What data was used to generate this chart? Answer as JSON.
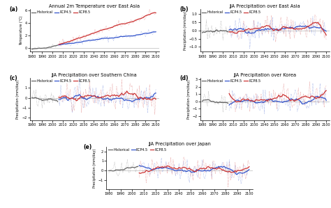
{
  "title_a": "Annual 2m Temperature over East Asia",
  "title_b": "JJA Precipitation over East Asia",
  "title_c": "JJA Precipitation over Southern China",
  "title_d": "JJA Precipitation over Korea",
  "title_e": "JJA Precipitation over Japan",
  "label_a": "(a)",
  "label_b": "(b)",
  "label_c": "(c)",
  "label_d": "(d)",
  "label_e": "(e)",
  "ylabel_temp": "Temperature (°C)",
  "ylabel_precip": "Precipitation (mm/day)",
  "legend_historical": "Historical",
  "legend_rcp45": "RCP4.5",
  "legend_rcp85": "RCP8.5",
  "color_historical": "#666666",
  "color_rcp45": "#3355cc",
  "color_rcp85": "#cc3333",
  "hist_start": 1980,
  "hist_end": 2005,
  "proj_start": 2006,
  "proj_end": 2100,
  "xlim": [
    1978,
    2103
  ],
  "xticks": [
    1980,
    1990,
    2000,
    2010,
    2020,
    2030,
    2040,
    2050,
    2060,
    2070,
    2080,
    2090,
    2100
  ],
  "ylim_a": [
    -0.6,
    6.2
  ],
  "yticks_a": [
    0.0,
    2.0,
    4.0,
    6.0
  ],
  "ylim_b": [
    -1.3,
    1.3
  ],
  "yticks_b": [
    -1.0,
    -0.5,
    0.0,
    0.5,
    1.0
  ],
  "ylim_c": [
    -2.3,
    2.0
  ],
  "yticks_c": [
    -2.0,
    -1.0,
    0.0,
    1.0
  ],
  "ylim_d": [
    -2.6,
    3.2
  ],
  "yticks_d": [
    -2.0,
    -1.0,
    0.0,
    1.0,
    2.0,
    3.0
  ],
  "ylim_e": [
    -2.0,
    2.5
  ],
  "yticks_e": [
    -1.0,
    0.0,
    1.0,
    2.0
  ],
  "seed": 42
}
